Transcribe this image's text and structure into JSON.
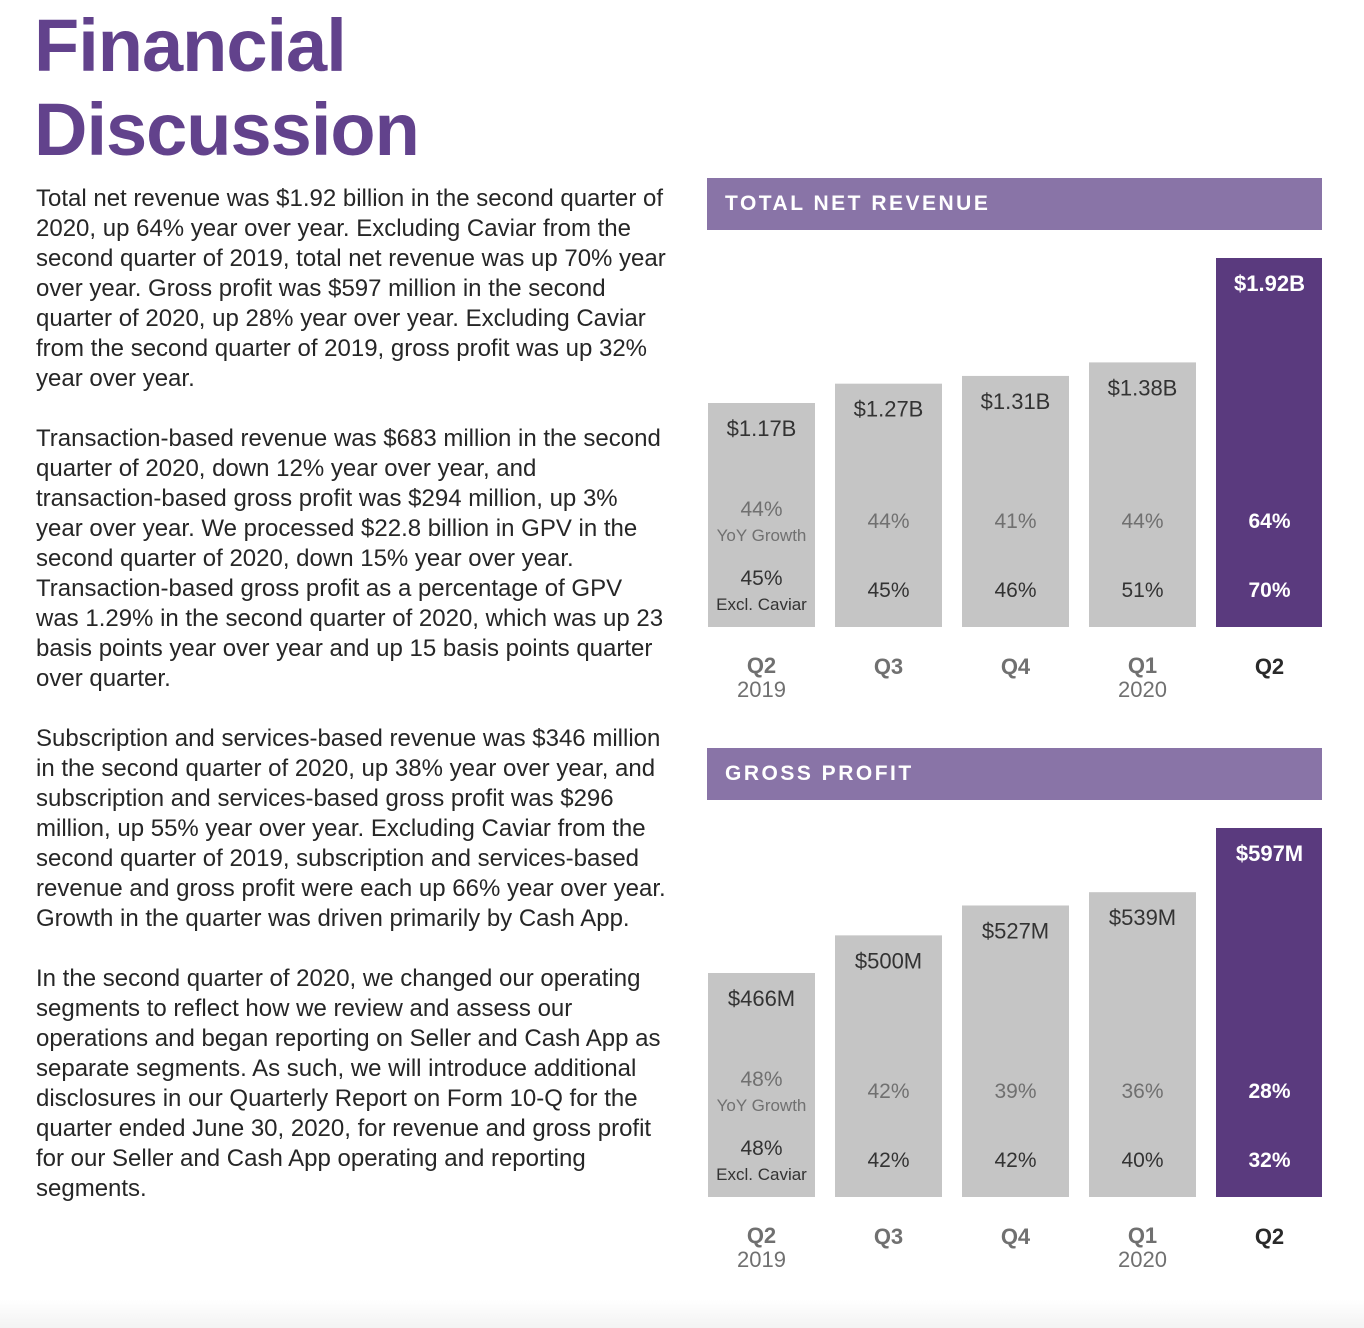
{
  "page_title": [
    "Financial",
    "Discussion"
  ],
  "paragraphs": [
    "Total net revenue was $1.92 billion in the second quarter of 2020, up 64% year over year. Excluding Caviar from the second quarter of 2019, total net revenue was up 70% year over year. Gross profit was $597 million in the second quarter of 2020, up 28% year over year. Excluding Caviar from the second quarter of 2019, gross profit was up 32% year over year.",
    "Transaction-based revenue was $683 million in the second quarter of 2020, down 12% year over year, and transaction-based gross profit was $294 million, up 3% year over year. We processed $22.8 billion in GPV in the second quarter of 2020, down 15% year over year. Transaction-based gross profit as a percentage of GPV was 1.29% in the second quarter of 2020, which was up 23 basis points year over year and up 15 basis points quarter over quarter.",
    "Subscription and services-based revenue was $346 million in the second quarter of 2020, up 38% year over year, and subscription and services-based gross profit was $296 million, up 55% year over year. Excluding Caviar from the second quarter of 2019, subscription and services-based revenue and gross profit were each up 66% year over year. Growth in the quarter was driven primarily by Cash App.",
    "In the second quarter of 2020, we changed our operating segments to reflect how we review and assess our operations and began reporting on Seller and Cash App as separate segments. As such, we will introduce additional disclosures in our Quarterly Report on Form 10-Q for the quarter ended June 30, 2020, for revenue and gross profit for our Seller and Cash App operating and reporting segments."
  ],
  "colors": {
    "title": "#62428c",
    "header": "#8974a7",
    "bar": "#c5c5c5",
    "highlight_bar": "#5a3a7e"
  },
  "chart_data": [
    {
      "type": "bar",
      "title": "TOTAL NET REVENUE",
      "categories": [
        {
          "quarter": "Q2",
          "year": "2019"
        },
        {
          "quarter": "Q3",
          "year": ""
        },
        {
          "quarter": "Q4",
          "year": ""
        },
        {
          "quarter": "Q1",
          "year": "2020"
        },
        {
          "quarter": "Q2",
          "year": ""
        }
      ],
      "values": [
        1.17,
        1.27,
        1.31,
        1.38,
        1.92
      ],
      "value_labels": [
        "$1.17B",
        "$1.27B",
        "$1.31B",
        "$1.38B",
        "$1.92B"
      ],
      "yoy_growth": [
        "44%",
        "44%",
        "41%",
        "44%",
        "64%"
      ],
      "yoy_growth_label": "YoY Growth",
      "excl_caviar": [
        "45%",
        "45%",
        "46%",
        "51%",
        "70%"
      ],
      "excl_caviar_label": "Excl. Caviar",
      "highlight_index": 4
    },
    {
      "type": "bar",
      "title": "GROSS PROFIT",
      "categories": [
        {
          "quarter": "Q2",
          "year": "2019"
        },
        {
          "quarter": "Q3",
          "year": ""
        },
        {
          "quarter": "Q4",
          "year": ""
        },
        {
          "quarter": "Q1",
          "year": "2020"
        },
        {
          "quarter": "Q2",
          "year": ""
        }
      ],
      "values": [
        466,
        500,
        527,
        539,
        597
      ],
      "value_labels": [
        "$466M",
        "$500M",
        "$527M",
        "$539M",
        "$597M"
      ],
      "yoy_growth": [
        "48%",
        "42%",
        "39%",
        "36%",
        "28%"
      ],
      "yoy_growth_label": "YoY Growth",
      "excl_caviar": [
        "48%",
        "42%",
        "42%",
        "40%",
        "32%"
      ],
      "excl_caviar_label": "Excl. Caviar",
      "highlight_index": 4
    }
  ]
}
